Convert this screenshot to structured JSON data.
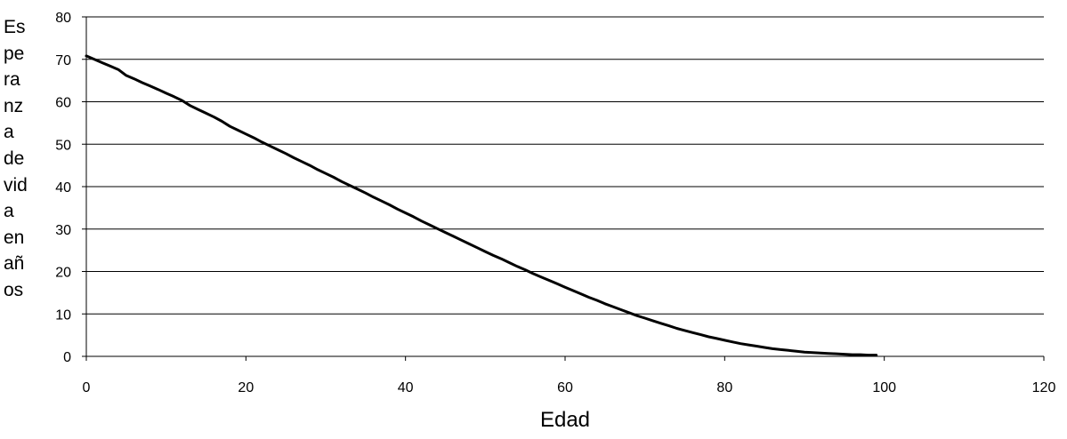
{
  "chart_data": {
    "type": "line",
    "xlabel": "Edad",
    "ylabel": "Esperanza de vida en años",
    "ylabel_lines": [
      "Es",
      "pe",
      "ra",
      "nz",
      "a",
      "de",
      "vid",
      "a",
      "en",
      "añ",
      "os"
    ],
    "xlim": [
      0,
      120
    ],
    "ylim": [
      0,
      80
    ],
    "xticks": [
      0,
      20,
      40,
      60,
      80,
      100,
      120
    ],
    "yticks": [
      0,
      10,
      20,
      30,
      40,
      50,
      60,
      70,
      80
    ],
    "grid": "horizontal",
    "legend": "none",
    "series": [
      {
        "color": "#000000",
        "x": [
          0,
          1,
          2,
          3,
          4,
          5,
          6,
          7,
          8,
          9,
          10,
          11,
          12,
          13,
          14,
          15,
          16,
          17,
          18,
          19,
          20,
          21,
          22,
          23,
          24,
          25,
          26,
          27,
          28,
          29,
          30,
          31,
          32,
          33,
          34,
          35,
          36,
          37,
          38,
          39,
          40,
          41,
          42,
          43,
          44,
          45,
          46,
          47,
          48,
          49,
          50,
          51,
          52,
          53,
          54,
          55,
          56,
          57,
          58,
          59,
          60,
          61,
          62,
          63,
          64,
          65,
          66,
          67,
          68,
          69,
          70,
          71,
          72,
          73,
          74,
          75,
          76,
          77,
          78,
          79,
          80,
          81,
          82,
          83,
          84,
          85,
          86,
          87,
          88,
          89,
          90,
          91,
          92,
          93,
          94,
          95,
          96,
          97,
          98,
          99
        ],
        "y": [
          70.8,
          70.0,
          69.2,
          68.4,
          67.6,
          66.2,
          65.4,
          64.5,
          63.7,
          62.9,
          62.0,
          61.2,
          60.3,
          59.1,
          58.2,
          57.3,
          56.4,
          55.4,
          54.2,
          53.3,
          52.4,
          51.5,
          50.5,
          49.6,
          48.7,
          47.8,
          46.8,
          45.9,
          45.0,
          44.0,
          43.1,
          42.2,
          41.2,
          40.3,
          39.4,
          38.5,
          37.5,
          36.6,
          35.7,
          34.7,
          33.8,
          32.9,
          31.9,
          31.0,
          30.1,
          29.2,
          28.3,
          27.4,
          26.5,
          25.6,
          24.7,
          23.8,
          23.0,
          22.1,
          21.2,
          20.4,
          19.5,
          18.7,
          17.9,
          17.1,
          16.3,
          15.5,
          14.7,
          13.9,
          13.2,
          12.4,
          11.7,
          11.0,
          10.3,
          9.6,
          9.0,
          8.4,
          7.8,
          7.2,
          6.6,
          6.1,
          5.6,
          5.1,
          4.6,
          4.2,
          3.8,
          3.4,
          3.0,
          2.7,
          2.4,
          2.1,
          1.8,
          1.6,
          1.4,
          1.2,
          1.0,
          0.9,
          0.8,
          0.7,
          0.6,
          0.5,
          0.4,
          0.4,
          0.3,
          0.3
        ]
      }
    ]
  }
}
